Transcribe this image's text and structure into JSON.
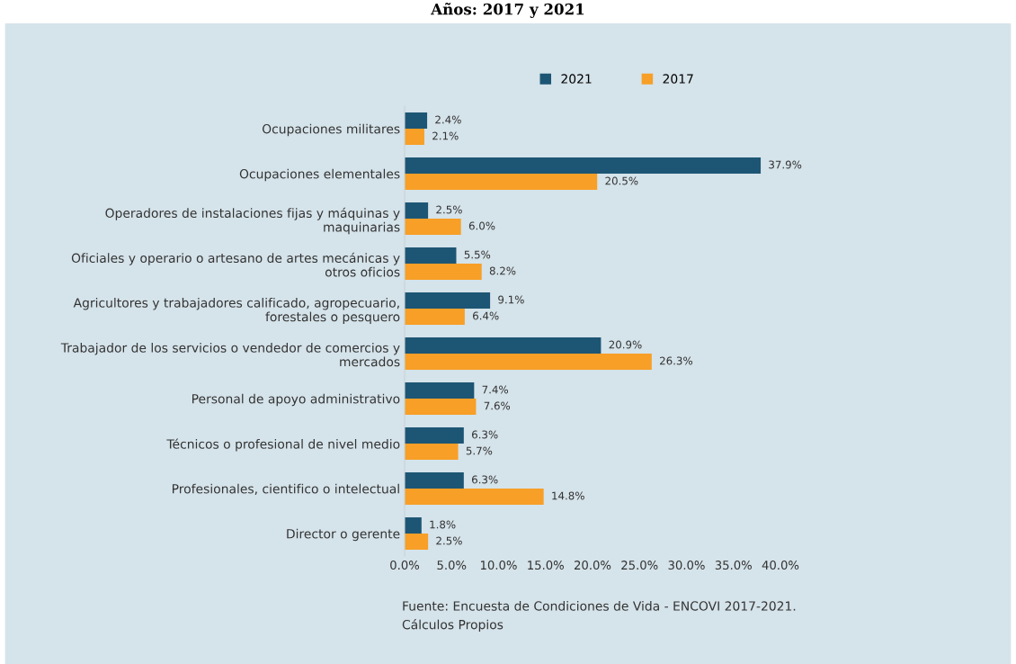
{
  "chart_data": {
    "type": "bar",
    "orientation": "horizontal",
    "title": "Años: 2017 y 2021",
    "categories": [
      "Ocupaciones militares",
      "Ocupaciones elementales",
      "Operadores de instalaciones fijas y máquinas y\nmaquinarias",
      "Oficiales y operario o artesano de artes mecánicas y\notros oficios",
      "Agricultores y trabajadores calificado, agropecuario,\nforestales o pesquero",
      "Trabajador de los servicios o vendedor de comercios y\nmercados",
      "Personal de apoyo administrativo",
      "Técnicos o profesional de nivel medio",
      "Profesionales, cientifico o intelectual",
      "Director o gerente"
    ],
    "series": [
      {
        "name": "2021",
        "color": "#1d5674",
        "values": [
          2.4,
          37.9,
          2.5,
          5.5,
          9.1,
          20.9,
          7.4,
          6.3,
          6.3,
          1.8
        ],
        "value_labels": [
          "2.4%",
          "37.9%",
          "2.5%",
          "5.5%",
          "9.1%",
          "20.9%",
          "7.4%",
          "6.3%",
          "6.3%",
          "1.8%"
        ]
      },
      {
        "name": "2017",
        "color": "#f79f27",
        "values": [
          2.1,
          20.5,
          6.0,
          8.2,
          6.4,
          26.3,
          7.6,
          5.7,
          14.8,
          2.5
        ],
        "value_labels": [
          "2.1%",
          "20.5%",
          "6.0%",
          "8.2%",
          "6.4%",
          "26.3%",
          "7.6%",
          "5.7%",
          "14.8%",
          "2.5%"
        ]
      }
    ],
    "xlim": [
      0,
      40
    ],
    "xticks": [
      {
        "value": 0,
        "label": "0.0%"
      },
      {
        "value": 5,
        "label": "5.0%"
      },
      {
        "value": 10,
        "label": "10.0%"
      },
      {
        "value": 15,
        "label": "15.0%"
      },
      {
        "value": 20,
        "label": "20.0%"
      },
      {
        "value": 25,
        "label": "25.0%"
      },
      {
        "value": 30,
        "label": "30.0%"
      },
      {
        "value": 35,
        "label": "35.0%"
      },
      {
        "value": 40,
        "label": "40.0%"
      }
    ],
    "grid": false,
    "legend": "top right",
    "annotations": [
      "Fuente: Encuesta de Condiciones de Vida - ENCOVI 2017-2021.\nCálculos Propios"
    ]
  }
}
